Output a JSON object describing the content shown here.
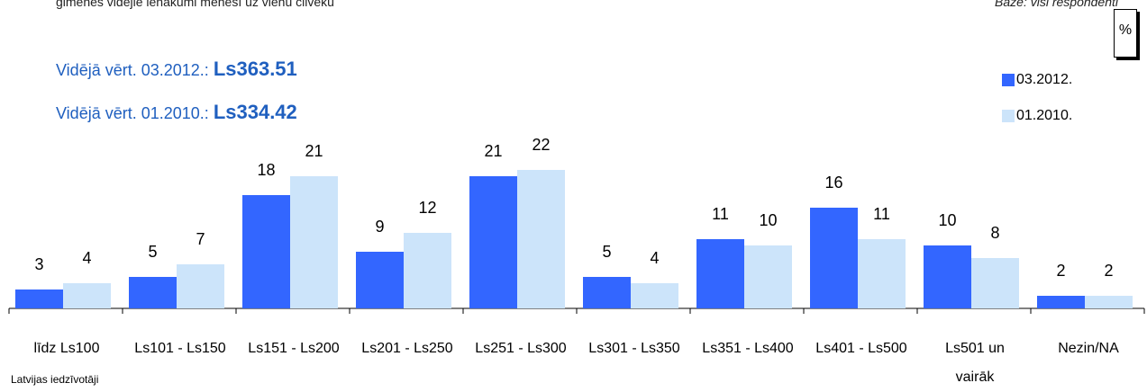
{
  "header": {
    "left_text": "ģimenes vidējie ienākumi mēnesī uz vienu cilvēku",
    "right_text": "Bāze: visi respondenti",
    "unit": "%"
  },
  "averages": [
    {
      "label": "Vidējā vērt. 03.2012.:",
      "value": "Ls363.51"
    },
    {
      "label": "Vidējā vērt. 01.2010.:",
      "value": "Ls334.42"
    }
  ],
  "colors": {
    "series_2012": "#3366ff",
    "series_2010": "#cce4fa",
    "avg_text": "#1f5fbf"
  },
  "footer_note": "Latvijas iedzīvotāji",
  "chart_data": {
    "type": "bar",
    "categories": [
      "līdz Ls100",
      "Ls101 - Ls150",
      "Ls151 - Ls200",
      "Ls201 - Ls250",
      "Ls251 - Ls300",
      "Ls301 - Ls350",
      "Ls351 - Ls400",
      "Ls401 - Ls500",
      "Ls501 un vairāk",
      "Nezin/NA"
    ],
    "series": [
      {
        "name": "03.2012.",
        "values": [
          3,
          5,
          18,
          9,
          21,
          5,
          11,
          16,
          10,
          2
        ]
      },
      {
        "name": "01.2010.",
        "values": [
          4,
          7,
          21,
          12,
          22,
          4,
          10,
          11,
          8,
          2
        ]
      }
    ],
    "ylim": [
      0,
      24
    ],
    "legend": "top-right",
    "grid": false
  }
}
